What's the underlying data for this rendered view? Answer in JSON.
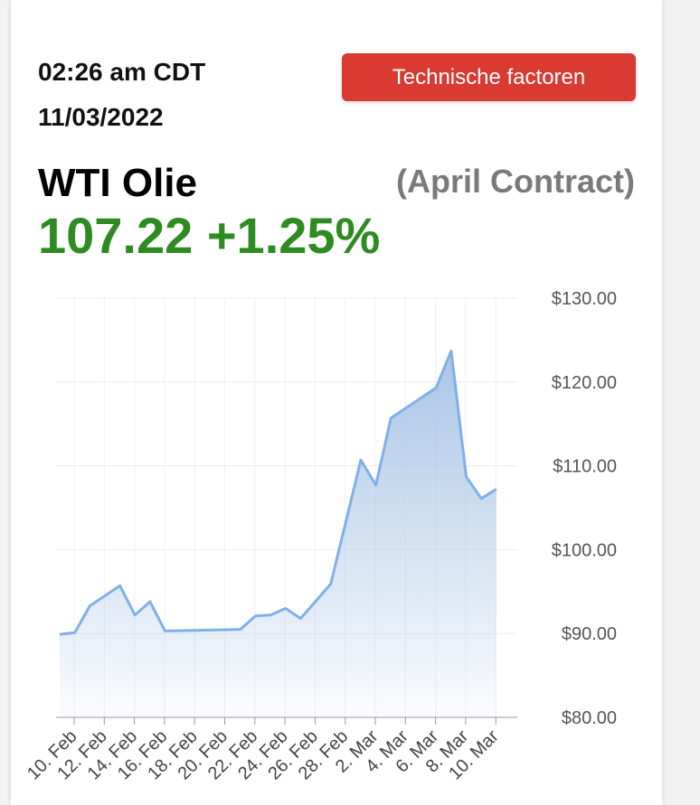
{
  "header": {
    "time": "02:26 am CDT",
    "date": "11/03/2022",
    "button_label": "Technische factoren"
  },
  "instrument": {
    "name": "WTI Olie",
    "contract": "(April Contract)",
    "price": "107.22",
    "change": "+1.25%"
  },
  "colors": {
    "price_green": "#2e8b22",
    "button_red": "#d93a32",
    "line": "#7fb0e8",
    "fill_top": "#a9c6e6"
  },
  "chart_data": {
    "type": "area",
    "title": "",
    "xlabel": "",
    "ylabel": "",
    "ylim": [
      80,
      130
    ],
    "y_ticks": [
      "$130.00",
      "$120.00",
      "$110.00",
      "$100.00",
      "$90.00",
      "$80.00"
    ],
    "x_ticks": [
      "10. Feb",
      "12. Feb",
      "14. Feb",
      "16. Feb",
      "18. Feb",
      "20. Feb",
      "22. Feb",
      "24. Feb",
      "26. Feb",
      "28. Feb",
      "2. Mar",
      "4. Mar",
      "6. Mar",
      "8. Mar",
      "10. Mar"
    ],
    "grid": true,
    "series": [
      {
        "x": [
          "2022-02-10",
          "2022-02-11",
          "2022-02-12",
          "2022-02-14",
          "2022-02-15",
          "2022-02-16",
          "2022-02-17",
          "2022-02-22",
          "2022-02-23",
          "2022-02-24",
          "2022-02-25",
          "2022-02-26",
          "2022-02-28",
          "2022-03-02",
          "2022-03-03",
          "2022-03-04",
          "2022-03-07",
          "2022-03-08",
          "2022-03-09",
          "2022-03-10",
          "2022-03-11"
        ],
        "values": [
          89.9,
          90.1,
          93.3,
          95.7,
          92.2,
          93.8,
          90.3,
          90.5,
          92.1,
          92.2,
          93.0,
          91.8,
          95.9,
          110.7,
          107.7,
          115.7,
          119.3,
          123.7,
          108.7,
          106.1,
          107.22
        ]
      }
    ]
  }
}
